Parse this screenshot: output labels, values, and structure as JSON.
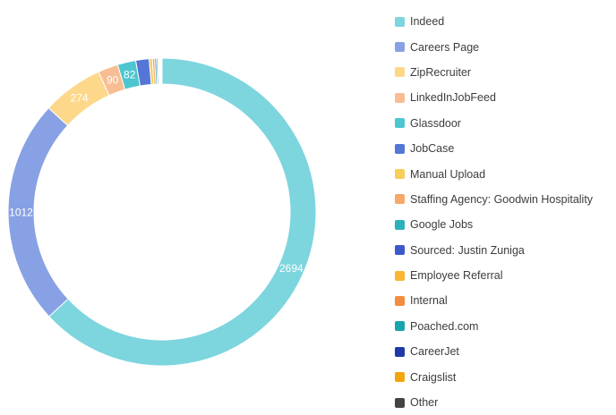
{
  "chart_data": {
    "type": "pie",
    "variant": "donut",
    "labels": [
      "Indeed",
      "Careers Page",
      "ZipRecruiter",
      "LinkedInJobFeed",
      "Glassdoor",
      "JobCase",
      "Manual Upload",
      "Staffing Agency: Goodwin Hospitality",
      "Google Jobs",
      "Sourced: Justin Zuniga",
      "Employee Referral",
      "Internal",
      "Poached.com",
      "CareerJet",
      "Craigslist",
      "Other"
    ],
    "values": [
      2694,
      1012,
      274,
      90,
      82,
      60,
      14,
      10,
      8,
      6,
      5,
      4,
      3,
      3,
      2,
      2
    ],
    "value_labels": [
      "2694",
      "1012",
      "274",
      "90",
      "82",
      "",
      "",
      "",
      "",
      "",
      "",
      "",
      "",
      "",
      "",
      ""
    ],
    "colors": [
      "#7dd5de",
      "#87a1e4",
      "#fdd88a",
      "#f8bd93",
      "#4dc6cf",
      "#5476d6",
      "#f7ce5a",
      "#f5a96a",
      "#2ab2ba",
      "#3d59c9",
      "#fbb535",
      "#f48c3f",
      "#17a4ac",
      "#1f3aa8",
      "#f2a50c",
      "#444444"
    ],
    "legend_position": "right",
    "title": ""
  }
}
